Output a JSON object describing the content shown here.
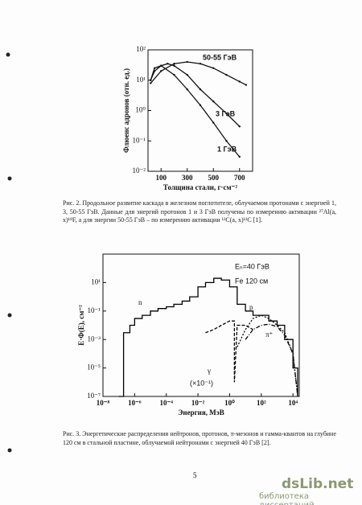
{
  "chart_data": [
    {
      "type": "line",
      "xscale": "linear",
      "yscale": "log",
      "ylabel": "Флюенс адронов (отн. ед.)",
      "xlabel": "Толщина стали, г·см⁻²",
      "xlim": [
        0,
        800
      ],
      "xticks": [
        100,
        300,
        500,
        700
      ],
      "ylim": [
        0.01,
        100
      ],
      "yticks": [
        {
          "value": 0.01,
          "label": "10⁻²"
        },
        {
          "value": 0.1,
          "label": "10⁻¹"
        },
        {
          "value": 1,
          "label": "10⁰"
        },
        {
          "value": 10,
          "label": "10¹"
        },
        {
          "value": 100,
          "label": "10²"
        }
      ],
      "series": [
        {
          "name": "50-55 ГэВ",
          "color": "#111111",
          "x": [
            20,
            100,
            200,
            300,
            400,
            500,
            600,
            700,
            750
          ],
          "values": [
            8,
            20,
            35,
            40,
            35,
            25,
            15,
            9,
            7
          ]
        },
        {
          "name": "3 ГэВ",
          "color": "#111111",
          "x": [
            20,
            50,
            100,
            150,
            200,
            300,
            400,
            500,
            600,
            700
          ],
          "values": [
            10,
            20,
            30,
            35,
            30,
            15,
            5,
            2,
            0.8,
            0.3
          ]
        },
        {
          "name": "1 ГэВ",
          "color": "#111111",
          "x": [
            20,
            50,
            100,
            200,
            300,
            400,
            500,
            600,
            700
          ],
          "values": [
            10,
            25,
            30,
            15,
            5,
            1.5,
            0.4,
            0.1,
            0.03
          ]
        }
      ]
    },
    {
      "type": "line",
      "xscale": "log",
      "yscale": "log",
      "ylabel": "E·Φ(E), см⁻²",
      "xlabel": "Энергия, МэВ",
      "annotations": [
        "Eₙ=40 ГэВ",
        "Fe 120 см",
        "(×10⁻¹)"
      ],
      "xlim": [
        1e-08,
        25000
      ],
      "xticks": [
        {
          "value": 1e-08,
          "label": "10⁻⁸"
        },
        {
          "value": 1e-06,
          "label": "10⁻⁶"
        },
        {
          "value": 0.0001,
          "label": "10⁻⁴"
        },
        {
          "value": 0.01,
          "label": "10⁻²"
        },
        {
          "value": 1,
          "label": "10⁰"
        },
        {
          "value": 100,
          "label": "10²"
        },
        {
          "value": 10000,
          "label": "10⁴"
        }
      ],
      "ylim": [
        1e-07,
        1000
      ],
      "yticks": [
        {
          "value": 1e-07,
          "label": "10⁻⁷"
        },
        {
          "value": 1e-05,
          "label": "10⁻⁵"
        },
        {
          "value": 0.001,
          "label": "10⁻³"
        },
        {
          "value": 0.1,
          "label": "10⁻¹"
        },
        {
          "value": 10,
          "label": "10¹"
        }
      ],
      "series": [
        {
          "name": "n",
          "color": "#000000",
          "x": [
            1e-07,
            2e-07,
            5e-07,
            1e-06,
            3e-06,
            1e-05,
            3e-05,
            0.0001,
            0.0003,
            0.001,
            0.003,
            0.01,
            0.03,
            0.1,
            0.3,
            1,
            3,
            10,
            30,
            100,
            300,
            1000,
            3000,
            10000,
            20000
          ],
          "values": [
            1e-07,
            0.003,
            0.01,
            0.03,
            0.05,
            0.1,
            0.15,
            0.2,
            0.3,
            0.5,
            1,
            5,
            10,
            20,
            15,
            5,
            0.3,
            0.1,
            0.05,
            0.05,
            0.02,
            0.01,
            0.001,
            1e-05,
            1e-07
          ]
        },
        {
          "name": "p",
          "color": "#000000",
          "x": [
            3,
            10,
            30,
            100,
            300,
            1000,
            3000,
            10000,
            20000
          ],
          "values": [
            0.0003,
            0.005,
            0.03,
            0.05,
            0.03,
            0.01,
            0.003,
            0.0001,
            1e-07
          ]
        },
        {
          "name": "π⁺",
          "color": "#000000",
          "x": [
            10,
            30,
            100,
            300,
            1000,
            3000,
            10000,
            20000
          ],
          "values": [
            0.001,
            0.005,
            0.01,
            0.012,
            0.008,
            0.002,
            0.0001,
            1e-07
          ]
        },
        {
          "name": "γ",
          "color": "#000000",
          "x": [
            0.03,
            0.1,
            0.3,
            1,
            2,
            2,
            3,
            10,
            30
          ],
          "values": [
            0.003,
            0.005,
            0.01,
            0.02,
            0.02,
            1e-06,
            0.01,
            0.01,
            0.005
          ]
        }
      ]
    }
  ],
  "captions": [
    "Рис. 2. Продольное развитие каскада в железном поглотителе, облучаемом протонами с энергией 1, 3, 50-55 ГэВ. Данные для энергий протонов 1 и 3 ГэВ получены по измерению активации ²⁷Al(a, x)¹⁸F, а для энергии 50-55 ГэВ – по измерению активации ¹²C(a, x)¹¹C [1].",
    "Рис. 3. Энергетические распределения нейтронов, протонов, π-мезонов и гамма-квантов на глубине 120 см в стальной пластине, облучаемой нейтронами с энергией 40 ГэВ [2]."
  ],
  "page_number": "5",
  "watermark": {
    "site": "dsLib.net",
    "subtitle": "библиотека диссертаций"
  }
}
